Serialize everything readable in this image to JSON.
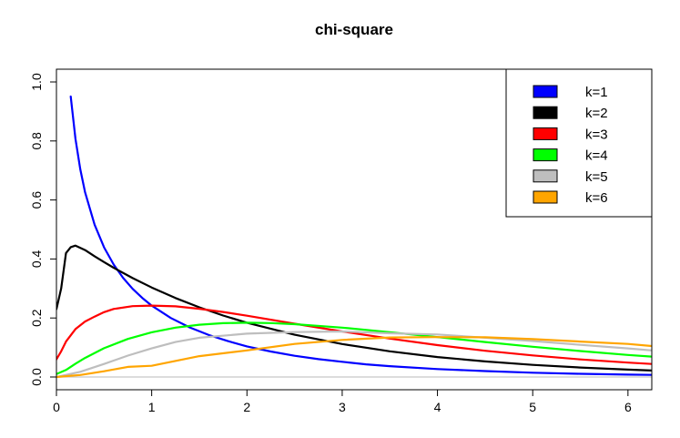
{
  "chart_data": {
    "type": "line",
    "title": "chi-square",
    "xlabel": "",
    "ylabel": "",
    "xlim": [
      0,
      6.25
    ],
    "ylim": [
      0,
      1.04
    ],
    "x_ticks": [
      {
        "value": 0,
        "label": "0"
      },
      {
        "value": 1,
        "label": "1"
      },
      {
        "value": 2,
        "label": "2"
      },
      {
        "value": 3,
        "label": "3"
      },
      {
        "value": 4,
        "label": "4"
      },
      {
        "value": 5,
        "label": "5"
      },
      {
        "value": 6,
        "label": "6"
      }
    ],
    "y_ticks": [
      {
        "value": 0,
        "label": "0.0"
      },
      {
        "value": 0.2,
        "label": "0.2"
      },
      {
        "value": 0.4,
        "label": "0.4"
      },
      {
        "value": 0.6,
        "label": "0.6"
      },
      {
        "value": 0.8,
        "label": "0.8"
      },
      {
        "value": 1.0,
        "label": "1.0"
      }
    ],
    "grid": false,
    "legend_position": "top-right",
    "baseline": {
      "y": 0,
      "color": "#c8c8c8"
    },
    "series": [
      {
        "name": "k=1",
        "color": "#0000ff",
        "x": [
          0.15,
          0.2,
          0.25,
          0.3,
          0.4,
          0.5,
          0.6,
          0.7,
          0.8,
          0.9,
          1.0,
          1.2,
          1.4,
          1.6,
          1.8,
          2.0,
          2.25,
          2.5,
          2.75,
          3.0,
          3.25,
          3.5,
          4.0,
          4.5,
          5.0,
          5.5,
          6.0,
          6.25
        ],
        "y": [
          0.9506,
          0.8072,
          0.7041,
          0.6267,
          0.5164,
          0.4394,
          0.3815,
          0.336,
          0.2989,
          0.2681,
          0.242,
          0.2001,
          0.1679,
          0.1423,
          0.1216,
          0.1038,
          0.0863,
          0.072,
          0.0604,
          0.0514,
          0.0429,
          0.0366,
          0.027,
          0.02,
          0.0146,
          0.0109,
          0.0081,
          0.007
        ]
      },
      {
        "name": "k=2",
        "color": "#000000",
        "x": [
          0.0,
          0.05,
          0.1,
          0.15,
          0.2,
          0.3,
          0.4,
          0.5,
          0.6,
          0.8,
          1.0,
          1.25,
          1.5,
          1.75,
          2.0,
          2.5,
          3.0,
          3.5,
          4.0,
          4.5,
          5.0,
          5.5,
          6.0,
          6.25
        ],
        "y": [
          0.23,
          0.3,
          0.42,
          0.44,
          0.4454,
          0.4304,
          0.4094,
          0.3894,
          0.3704,
          0.3352,
          0.3033,
          0.2676,
          0.2362,
          0.2084,
          0.1839,
          0.1433,
          0.1116,
          0.0869,
          0.0677,
          0.0527,
          0.041,
          0.032,
          0.0249,
          0.022
        ]
      },
      {
        "name": "k=3",
        "color": "#ff0000",
        "x": [
          0.0,
          0.05,
          0.1,
          0.2,
          0.3,
          0.4,
          0.5,
          0.6,
          0.8,
          1.0,
          1.25,
          1.5,
          1.75,
          2.0,
          2.5,
          3.0,
          3.5,
          4.0,
          4.5,
          5.0,
          5.5,
          6.0,
          6.25
        ],
        "y": [
          0.06,
          0.087,
          0.12,
          0.1622,
          0.1879,
          0.2047,
          0.2197,
          0.2307,
          0.2401,
          0.242,
          0.2394,
          0.2313,
          0.2203,
          0.2076,
          0.1806,
          0.1542,
          0.1303,
          0.108,
          0.089,
          0.073,
          0.0597,
          0.0488,
          0.044
        ]
      },
      {
        "name": "k=4",
        "color": "#00ff00",
        "x": [
          0.0,
          0.1,
          0.2,
          0.3,
          0.5,
          0.75,
          1.0,
          1.25,
          1.5,
          1.75,
          2.0,
          2.25,
          2.5,
          3.0,
          3.5,
          4.0,
          4.5,
          5.0,
          5.5,
          6.0,
          6.25
        ],
        "y": [
          0.01,
          0.0238,
          0.0452,
          0.0645,
          0.0974,
          0.1289,
          0.1516,
          0.1673,
          0.1771,
          0.1823,
          0.1839,
          0.1826,
          0.1791,
          0.1673,
          0.152,
          0.1353,
          0.1186,
          0.1026,
          0.088,
          0.0747,
          0.069
        ]
      },
      {
        "name": "k=5",
        "color": "#bebebe",
        "x": [
          0.0,
          0.25,
          0.5,
          0.75,
          1.0,
          1.25,
          1.5,
          2.0,
          2.5,
          3.0,
          3.5,
          4.0,
          4.5,
          5.0,
          5.5,
          6.0,
          6.25
        ],
        "y": [
          0.0,
          0.0177,
          0.044,
          0.0724,
          0.0968,
          0.1186,
          0.1331,
          0.1468,
          0.1522,
          0.1542,
          0.148,
          0.144,
          0.133,
          0.122,
          0.109,
          0.097,
          0.09
        ]
      },
      {
        "name": "k=6",
        "color": "#ffa500",
        "x": [
          0.0,
          0.25,
          0.5,
          0.75,
          1.0,
          1.5,
          2.0,
          2.5,
          3.0,
          3.5,
          4.0,
          4.5,
          5.0,
          5.5,
          6.0,
          6.25
        ],
        "y": [
          0.0,
          0.0069,
          0.0195,
          0.0344,
          0.0379,
          0.0708,
          0.0902,
          0.112,
          0.1255,
          0.1339,
          0.1353,
          0.1346,
          0.1283,
          0.1202,
          0.112,
          0.105
        ]
      }
    ]
  }
}
